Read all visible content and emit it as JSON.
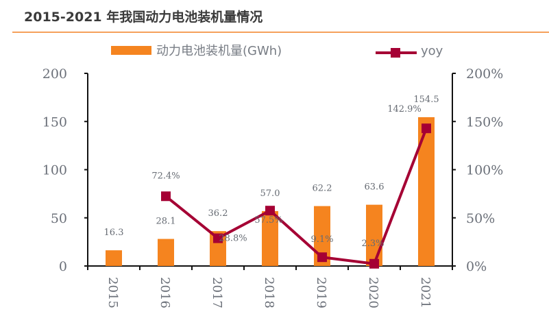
{
  "title": "2015-2021 年我国动力电池装机量情况",
  "colors": {
    "bar": "#F5841F",
    "line": "#A50034",
    "rule": "#F5A05A",
    "axis": "#111111"
  },
  "chart_data": {
    "type": "bar",
    "title": "2015-2021 年我国动力电池装机量情况",
    "xlabel": "",
    "ylabel": "",
    "categories": [
      "2015",
      "2016",
      "2017",
      "2018",
      "2019",
      "2020",
      "2021"
    ],
    "series": [
      {
        "name": "动力电池装机量(GWh)",
        "type": "bar",
        "axis": "left",
        "values": [
          16.3,
          28.1,
          36.2,
          57.0,
          62.2,
          63.6,
          154.5
        ],
        "labels": [
          "16.3",
          "28.1",
          "36.2",
          "57.0",
          "62.2",
          "63.6",
          "154.5"
        ]
      },
      {
        "name": "yoy",
        "type": "line",
        "axis": "right",
        "values": [
          null,
          72.4,
          28.8,
          57.5,
          9.1,
          2.3,
          142.9
        ],
        "labels": [
          "",
          "72.4%",
          "28.8%",
          "57.5%",
          "9.1%",
          "2.3%",
          "142.9%"
        ]
      }
    ],
    "ylim": [
      0,
      200
    ],
    "yticks": [
      "0",
      "50",
      "100",
      "150",
      "200"
    ],
    "y2lim": [
      0,
      200
    ],
    "y2ticks": [
      "0%",
      "50%",
      "100%",
      "150%",
      "200%"
    ],
    "legend": {
      "position": "top",
      "entries": [
        "动力电池装机量(GWh)",
        "yoy"
      ]
    },
    "grid": false
  }
}
